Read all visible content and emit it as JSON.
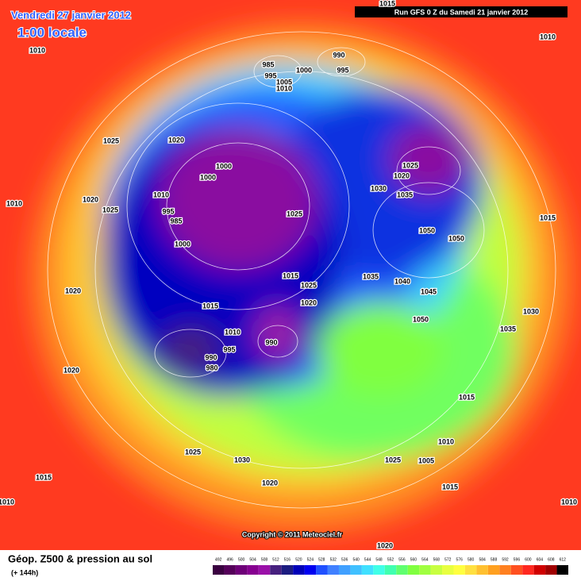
{
  "header": {
    "date": "Vendredi 27 janvier 2012",
    "time": "1:00 locale",
    "run": "Run GFS 0 Z du Samedi 21 janvier 2012"
  },
  "footer": {
    "title": "Géop. Z500 & pression au sol",
    "lead": "(+ 144h)",
    "copyright": "Copyright © 2011 Meteociel.fr"
  },
  "isobar_labels": [
    "1015",
    "1010",
    "1010",
    "985",
    "995",
    "1005",
    "1010",
    "1000",
    "990",
    "995",
    "1025",
    "1020",
    "1000",
    "1000",
    "1025",
    "1020",
    "1030",
    "1035",
    "1010",
    "995",
    "985",
    "1020",
    "1025",
    "1010",
    "1025",
    "1015",
    "1050",
    "1050",
    "1000",
    "1015",
    "1035",
    "1040",
    "1025",
    "1045",
    "1020",
    "1020",
    "1015",
    "1030",
    "1050",
    "1035",
    "1010",
    "995",
    "990",
    "990",
    "980",
    "1020",
    "1015",
    "1010",
    "1025",
    "1030",
    "1025",
    "1005",
    "1015",
    "1020",
    "1015",
    "1010",
    "1010",
    "1020"
  ],
  "legend": {
    "levels": [
      492,
      496,
      500,
      504,
      508,
      512,
      516,
      520,
      524,
      528,
      532,
      536,
      540,
      544,
      548,
      552,
      556,
      560,
      564,
      568,
      572,
      576,
      580,
      584,
      588,
      592,
      596,
      600,
      604,
      608,
      612
    ],
    "colors": [
      "#3a0040",
      "#55005a",
      "#6e0078",
      "#860090",
      "#9a10a8",
      "#46207e",
      "#1c1c80",
      "#0000b8",
      "#0000f0",
      "#2050ff",
      "#4080ff",
      "#40a0ff",
      "#40c0ff",
      "#40e0ff",
      "#40ffe8",
      "#40ffb0",
      "#60ff70",
      "#80ff40",
      "#a0ff40",
      "#c8ff40",
      "#e8ff40",
      "#ffff40",
      "#ffe040",
      "#ffc030",
      "#ffa020",
      "#ff8020",
      "#ff5020",
      "#ff2820",
      "#d00000",
      "#a00000",
      "#000000"
    ]
  }
}
